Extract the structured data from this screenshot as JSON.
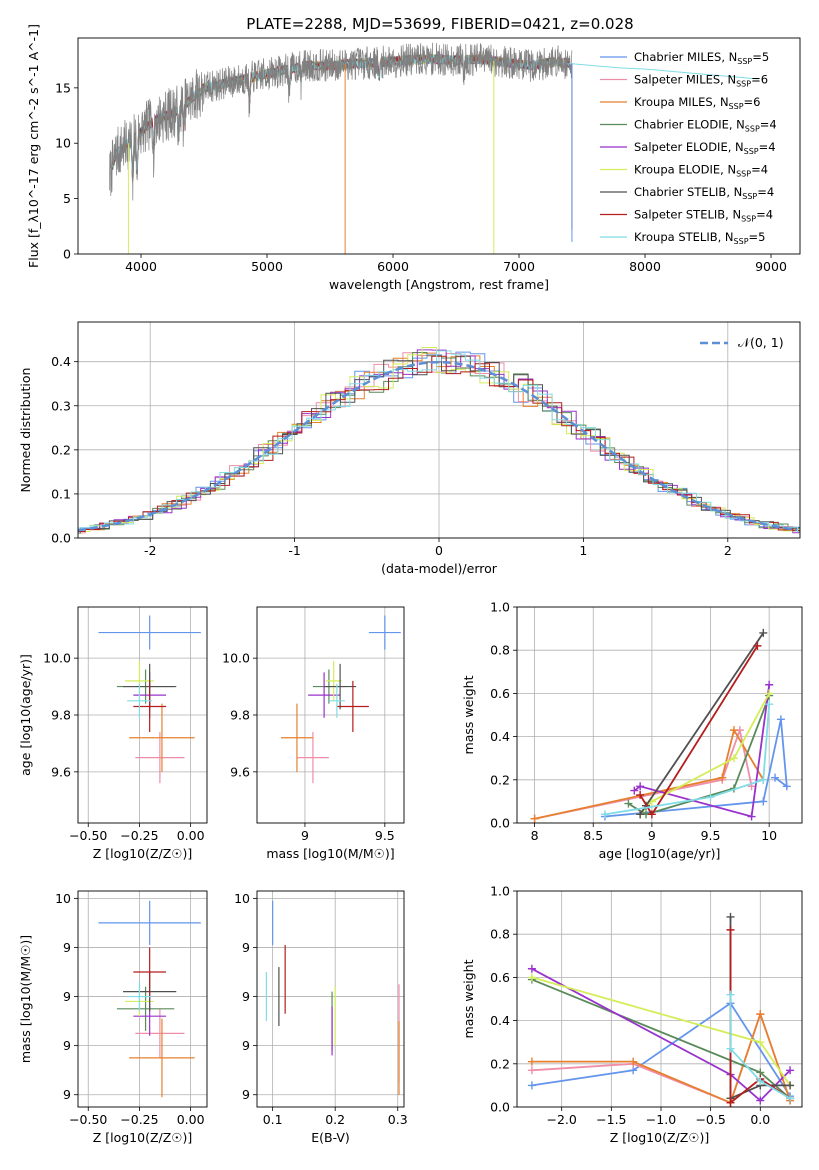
{
  "figure": {
    "title": "PLATE=2288, MJD=53699, FIBERID=0421, z=0.028"
  },
  "models": [
    {
      "name": "Chabrier MILES",
      "nssp": "5",
      "color": "#6495ed"
    },
    {
      "name": "Salpeter MILES",
      "nssp": "6",
      "color": "#f08ea8"
    },
    {
      "name": "Kroupa MILES",
      "nssp": "6",
      "color": "#e6802e"
    },
    {
      "name": "Chabrier ELODIE",
      "nssp": "4",
      "color": "#5a8a5a"
    },
    {
      "name": "Salpeter ELODIE",
      "nssp": "4",
      "color": "#9932cc"
    },
    {
      "name": "Kroupa ELODIE",
      "nssp": "4",
      "color": "#d4ed5a"
    },
    {
      "name": "Chabrier STELIB",
      "nssp": "4",
      "color": "#505050"
    },
    {
      "name": "Salpeter STELIB",
      "nssp": "4",
      "color": "#b41e1e"
    },
    {
      "name": "Kroupa STELIB",
      "nssp": "5",
      "color": "#80dce6"
    }
  ],
  "chart_data": [
    {
      "id": "spectrum",
      "type": "line",
      "xlabel": "wavelength [Angstrom, rest frame]",
      "ylabel": "Flux [f_λ10^-17 erg cm^-2 s^-1 A^-1]",
      "xlim": [
        3500,
        9230
      ],
      "ylim": [
        0,
        19.5
      ],
      "xticks": [
        4000,
        5000,
        6000,
        7000,
        8000,
        9000
      ],
      "yticks": [
        0,
        5,
        10,
        15
      ],
      "grid": false,
      "legend": "right",
      "data_spectrum_x": [
        3750,
        3800,
        3900,
        4000,
        4100,
        4200,
        4300,
        4400,
        4500,
        4700,
        4900,
        5100,
        5300,
        5500,
        5700,
        5900,
        6100,
        6300,
        6500,
        6700,
        6900,
        7100,
        7300,
        7400
      ],
      "data_spectrum_y": [
        7,
        9,
        10,
        11,
        12,
        12.5,
        13,
        14,
        15,
        15.5,
        16,
        16.5,
        17,
        17,
        17.2,
        17.3,
        17.5,
        17.6,
        17.5,
        17.6,
        17.3,
        17,
        17.4,
        17.2
      ],
      "model_tail_x": [
        7400,
        7600,
        7800,
        8000,
        8200,
        8400,
        8600,
        8800,
        8900
      ],
      "model_tail_y": [
        17.2,
        17.0,
        16.8,
        16.7,
        16.5,
        16.3,
        16.1,
        15.9,
        15.8
      ]
    },
    {
      "id": "residuals",
      "type": "bar",
      "xlabel": "(data-model)/error",
      "ylabel": "Normed distribution",
      "xlim": [
        -2.5,
        2.5
      ],
      "ylim": [
        0,
        0.49
      ],
      "xticks": [
        -2,
        -1,
        0,
        1,
        2
      ],
      "yticks": [
        0.0,
        0.1,
        0.2,
        0.3,
        0.4
      ],
      "grid": true,
      "legend": "top-right",
      "gauss_label": "𝒩(0, 1)",
      "bin_width": 0.1
    },
    {
      "id": "age_vs_Z",
      "type": "scatter",
      "xlabel": "Z [log10(Z/Z☉)]",
      "ylabel": "age  [log10(age/yr)]",
      "xlim": [
        -0.55,
        0.08
      ],
      "ylim": [
        9.42,
        10.18
      ],
      "xticks": [
        -0.5,
        -0.25,
        0.0
      ],
      "xticklabels": [
        "−0.50",
        "−0.25",
        "0.00"
      ],
      "yticks": [
        9.6,
        9.8,
        10.0
      ],
      "grid": true,
      "points": [
        {
          "model": 0,
          "x": -0.2,
          "xerr": 0.25,
          "y": 10.09,
          "yerr": 0.06
        },
        {
          "model": 1,
          "x": -0.15,
          "xerr": 0.12,
          "y": 9.65,
          "yerr": 0.09
        },
        {
          "model": 2,
          "x": -0.14,
          "xerr": 0.16,
          "y": 9.72,
          "yerr": 0.12
        },
        {
          "model": 3,
          "x": -0.22,
          "xerr": 0.14,
          "y": 9.9,
          "yerr": 0.06
        },
        {
          "model": 4,
          "x": -0.2,
          "xerr": 0.08,
          "y": 9.87,
          "yerr": 0.08
        },
        {
          "model": 5,
          "x": -0.25,
          "xerr": 0.07,
          "y": 9.92,
          "yerr": 0.07
        },
        {
          "model": 6,
          "x": -0.2,
          "xerr": 0.13,
          "y": 9.9,
          "yerr": 0.08
        },
        {
          "model": 7,
          "x": -0.2,
          "xerr": 0.08,
          "y": 9.83,
          "yerr": 0.09
        },
        {
          "model": 8,
          "x": -0.25,
          "xerr": 0.06,
          "y": 9.85,
          "yerr": 0.06
        }
      ]
    },
    {
      "id": "age_vs_mass",
      "type": "scatter",
      "xlabel": "mass [log10(M/M☉)]",
      "xlim": [
        8.7,
        9.62
      ],
      "ylim": [
        9.42,
        10.18
      ],
      "xticks": [
        9.0,
        9.5
      ],
      "yticks": [
        9.6,
        9.8,
        10.0
      ],
      "grid": true,
      "points": [
        {
          "model": 0,
          "x": 9.5,
          "xerr": 0.1,
          "y": 10.09,
          "yerr": 0.06
        },
        {
          "model": 1,
          "x": 9.05,
          "xerr": 0.1,
          "y": 9.65,
          "yerr": 0.09
        },
        {
          "model": 2,
          "x": 8.95,
          "xerr": 0.1,
          "y": 9.72,
          "yerr": 0.12
        },
        {
          "model": 3,
          "x": 9.15,
          "xerr": 0.1,
          "y": 9.9,
          "yerr": 0.06
        },
        {
          "model": 4,
          "x": 9.12,
          "xerr": 0.1,
          "y": 9.87,
          "yerr": 0.08
        },
        {
          "model": 5,
          "x": 9.18,
          "xerr": 0.05,
          "y": 9.92,
          "yerr": 0.07
        },
        {
          "model": 6,
          "x": 9.22,
          "xerr": 0.1,
          "y": 9.9,
          "yerr": 0.08
        },
        {
          "model": 7,
          "x": 9.3,
          "xerr": 0.1,
          "y": 9.83,
          "yerr": 0.09
        },
        {
          "model": 8,
          "x": 9.2,
          "xerr": 0.05,
          "y": 9.85,
          "yerr": 0.06
        }
      ]
    },
    {
      "id": "weight_vs_age",
      "type": "line",
      "xlabel": "age  [log10(age/yr)]",
      "ylabel": "mass weight",
      "xlim": [
        7.85,
        10.28
      ],
      "ylim": [
        0,
        1.0
      ],
      "xticks": [
        8.0,
        8.5,
        9.0,
        9.5,
        10.0
      ],
      "yticks": [
        0.0,
        0.2,
        0.4,
        0.6,
        0.8,
        1.0
      ],
      "grid": true,
      "series": [
        {
          "model": 0,
          "x": [
            8.6,
            9.95,
            10.1,
            10.15,
            10.05
          ],
          "y": [
            0.03,
            0.1,
            0.48,
            0.17,
            0.21
          ]
        },
        {
          "model": 1,
          "x": [
            8.0,
            9.6,
            9.75,
            9.85
          ],
          "y": [
            0.02,
            0.2,
            0.43,
            0.17
          ]
        },
        {
          "model": 2,
          "x": [
            8.0,
            9.6,
            9.7,
            9.95
          ],
          "y": [
            0.02,
            0.21,
            0.43,
            0.2
          ]
        },
        {
          "model": 3,
          "x": [
            8.8,
            8.95,
            9.7,
            10.0
          ],
          "y": [
            0.09,
            0.04,
            0.16,
            0.59
          ]
        },
        {
          "model": 4,
          "x": [
            8.85,
            8.9,
            9.85,
            10.0
          ],
          "y": [
            0.15,
            0.17,
            0.03,
            0.64
          ]
        },
        {
          "model": 5,
          "x": [
            8.9,
            9.0,
            9.7,
            10.0
          ],
          "y": [
            0.04,
            0.1,
            0.3,
            0.6
          ]
        },
        {
          "model": 6,
          "x": [
            8.9,
            8.95,
            9.95
          ],
          "y": [
            0.04,
            0.08,
            0.88
          ]
        },
        {
          "model": 7,
          "x": [
            8.9,
            9.0,
            9.9
          ],
          "y": [
            0.13,
            0.04,
            0.82
          ]
        },
        {
          "model": 8,
          "x": [
            8.6,
            9.5,
            9.95,
            10.0
          ],
          "y": [
            0.04,
            0.12,
            0.2,
            0.55
          ]
        }
      ]
    },
    {
      "id": "mass_vs_Z",
      "type": "scatter",
      "xlabel": "Z [log10(Z/Z☉)]",
      "ylabel": "mass [log10(M/M☉)]",
      "xlim": [
        -0.55,
        0.08
      ],
      "ylim": [
        8.75,
        9.63
      ],
      "xticks": [
        -0.5,
        -0.25,
        0.0
      ],
      "xticklabels": [
        "−0.50",
        "−0.25",
        "0.00"
      ],
      "yticks": [
        8.8,
        9.0,
        9.2,
        9.4,
        9.6
      ],
      "grid": true,
      "points": [
        {
          "model": 0,
          "x": -0.2,
          "xerr": 0.25,
          "y": 9.5,
          "yerr": 0.09
        },
        {
          "model": 1,
          "x": -0.15,
          "xerr": 0.12,
          "y": 9.05,
          "yerr": 0.1
        },
        {
          "model": 2,
          "x": -0.14,
          "xerr": 0.16,
          "y": 8.95,
          "yerr": 0.16
        },
        {
          "model": 3,
          "x": -0.22,
          "xerr": 0.14,
          "y": 9.15,
          "yerr": 0.09
        },
        {
          "model": 4,
          "x": -0.2,
          "xerr": 0.08,
          "y": 9.12,
          "yerr": 0.08
        },
        {
          "model": 5,
          "x": -0.25,
          "xerr": 0.07,
          "y": 9.18,
          "yerr": 0.06
        },
        {
          "model": 6,
          "x": -0.2,
          "xerr": 0.13,
          "y": 9.22,
          "yerr": 0.08
        },
        {
          "model": 7,
          "x": -0.2,
          "xerr": 0.08,
          "y": 9.3,
          "yerr": 0.1
        },
        {
          "model": 8,
          "x": -0.25,
          "xerr": 0.06,
          "y": 9.2,
          "yerr": 0.06
        }
      ]
    },
    {
      "id": "mass_vs_ebv",
      "type": "scatter",
      "xlabel": "E(B-V)",
      "xlim": [
        0.075,
        0.31
      ],
      "ylim": [
        8.75,
        9.63
      ],
      "xticks": [
        0.1,
        0.2,
        0.3
      ],
      "yticks": [
        8.8,
        9.0,
        9.2,
        9.4,
        9.6
      ],
      "grid": true,
      "points": [
        {
          "model": 0,
          "x": 0.1,
          "xerr": 0.0,
          "y": 9.5,
          "yerr": 0.09
        },
        {
          "model": 1,
          "x": 0.302,
          "xerr": 0.0,
          "y": 9.05,
          "yerr": 0.2
        },
        {
          "model": 2,
          "x": 0.302,
          "xerr": 0.0,
          "y": 8.95,
          "yerr": 0.15
        },
        {
          "model": 3,
          "x": 0.195,
          "xerr": 0.0,
          "y": 9.1,
          "yerr": 0.12
        },
        {
          "model": 4,
          "x": 0.195,
          "xerr": 0.0,
          "y": 9.06,
          "yerr": 0.1
        },
        {
          "model": 5,
          "x": 0.2,
          "xerr": 0.0,
          "y": 9.12,
          "yerr": 0.12
        },
        {
          "model": 6,
          "x": 0.11,
          "xerr": 0.0,
          "y": 9.2,
          "yerr": 0.12
        },
        {
          "model": 7,
          "x": 0.12,
          "xerr": 0.0,
          "y": 9.27,
          "yerr": 0.14
        },
        {
          "model": 8,
          "x": 0.09,
          "xerr": 0.0,
          "y": 9.2,
          "yerr": 0.1
        }
      ]
    },
    {
      "id": "weight_vs_Z",
      "type": "line",
      "xlabel": "Z [log10(Z/Z☉)]",
      "ylabel": "mass weight",
      "xlim": [
        -2.45,
        0.42
      ],
      "ylim": [
        0,
        1.0
      ],
      "xticks": [
        -2.0,
        -1.5,
        -1.0,
        -0.5,
        0.0
      ],
      "xticklabels": [
        "−2.0",
        "−1.5",
        "−1.0",
        "−0.5",
        "0.0"
      ],
      "yticks": [
        0.0,
        0.2,
        0.4,
        0.6,
        0.8,
        1.0
      ],
      "grid": true,
      "series": [
        {
          "model": 0,
          "x": [
            -2.3,
            -1.28,
            -0.3,
            0.3
          ],
          "y": [
            0.1,
            0.17,
            0.48,
            0.05
          ]
        },
        {
          "model": 1,
          "x": [
            -2.3,
            -1.28,
            -0.3,
            0.0,
            0.3
          ],
          "y": [
            0.17,
            0.2,
            0.02,
            0.43,
            0.03
          ]
        },
        {
          "model": 2,
          "x": [
            -2.3,
            -1.28,
            -0.3,
            0.0,
            0.3
          ],
          "y": [
            0.21,
            0.21,
            0.02,
            0.43,
            0.03
          ]
        },
        {
          "model": 3,
          "x": [
            -2.3,
            0.0,
            0.3
          ],
          "y": [
            0.59,
            0.16,
            0.04
          ]
        },
        {
          "model": 4,
          "x": [
            -2.3,
            -0.3,
            0.0,
            0.3
          ],
          "y": [
            0.64,
            0.15,
            0.03,
            0.17
          ]
        },
        {
          "model": 5,
          "x": [
            -2.3,
            0.0,
            0.3
          ],
          "y": [
            0.6,
            0.3,
            0.1
          ]
        },
        {
          "model": 6,
          "x": [
            -0.3,
            -0.3,
            0.0,
            0.3
          ],
          "y": [
            0.88,
            0.04,
            0.1,
            0.1
          ]
        },
        {
          "model": 7,
          "x": [
            -0.3,
            -0.3,
            0.0,
            0.3
          ],
          "y": [
            0.82,
            0.02,
            0.13,
            0.04
          ]
        },
        {
          "model": 8,
          "x": [
            -0.3,
            -0.3,
            0.0,
            0.3
          ],
          "y": [
            0.52,
            0.27,
            0.12,
            0.04
          ]
        }
      ]
    }
  ]
}
